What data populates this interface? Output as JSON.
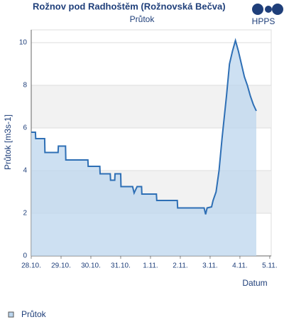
{
  "chart_data": {
    "type": "line",
    "title": "Rožnov pod Radhoštěm (Rožnovská Bečva)",
    "subtitle": "Průtok",
    "logo": "HPPS",
    "x_label": "Datum",
    "y_label": "Průtok [m3s-1]",
    "x": [
      0,
      0.14,
      0.15,
      0.45,
      0.46,
      0.9,
      0.91,
      1.15,
      1.16,
      1.9,
      1.91,
      2.3,
      2.31,
      2.65,
      2.66,
      2.8,
      2.81,
      3.0,
      3.01,
      3.4,
      3.45,
      3.55,
      3.7,
      3.71,
      4.2,
      4.21,
      4.9,
      4.91,
      5.8,
      5.85,
      5.9,
      6.05,
      6.1,
      6.2,
      6.3,
      6.4,
      6.55,
      6.65,
      6.75,
      6.85,
      6.95,
      7.05,
      7.15,
      7.25,
      7.35,
      7.45,
      7.55
    ],
    "series": [
      {
        "name": "Průtok",
        "color": "#2e6fb5",
        "values": [
          5.8,
          5.8,
          5.5,
          5.5,
          4.85,
          4.85,
          5.15,
          5.15,
          4.5,
          4.5,
          4.2,
          4.2,
          3.85,
          3.85,
          3.55,
          3.55,
          3.85,
          3.85,
          3.25,
          3.25,
          2.95,
          3.25,
          3.25,
          2.9,
          2.9,
          2.6,
          2.6,
          2.25,
          2.25,
          1.95,
          2.25,
          2.3,
          2.6,
          3.0,
          4.0,
          5.5,
          7.5,
          9.0,
          9.6,
          10.1,
          9.6,
          9.0,
          8.4,
          8.0,
          7.5,
          7.1,
          6.8
        ]
      }
    ],
    "xlim": [
      0,
      8.05
    ],
    "xticks": [
      {
        "value": 0,
        "label": "28.10."
      },
      {
        "value": 1,
        "label": "29.10."
      },
      {
        "value": 2,
        "label": "30.10."
      },
      {
        "value": 3,
        "label": "31.10."
      },
      {
        "value": 4,
        "label": "1.11."
      },
      {
        "value": 5,
        "label": "2.11."
      },
      {
        "value": 6,
        "label": "3.11."
      },
      {
        "value": 7,
        "label": "4.11."
      },
      {
        "value": 8,
        "label": "5.11."
      }
    ],
    "ylim": [
      0,
      10.6
    ],
    "yticks": [
      0,
      2,
      4,
      6,
      8,
      10
    ],
    "grid": true,
    "fill_color": "#bcd6ee"
  }
}
